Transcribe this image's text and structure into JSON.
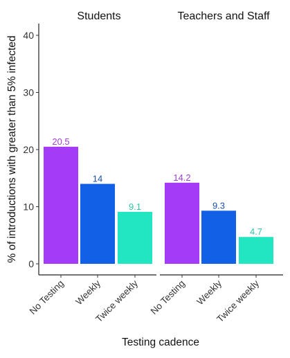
{
  "chart_data": {
    "type": "bar",
    "xlabel": "Testing cadence",
    "ylabel": "% of introductions with greater than 5% infected",
    "ylim": [
      0,
      42
    ],
    "yticks": [
      0,
      10,
      20,
      30,
      40
    ],
    "grid": false,
    "legend": "none",
    "categories": [
      "No Testing",
      "Weekly",
      "Twice weekly"
    ],
    "colors": [
      "#a43bf7",
      "#1160e6",
      "#22e5c2"
    ],
    "label_colors": [
      "#a33bd6",
      "#1a4fa8",
      "#2ec9ab"
    ],
    "panels": [
      {
        "title": "Students",
        "values": [
          20.5,
          14,
          9.1
        ],
        "labels": [
          "20.5",
          "14",
          "9.1"
        ]
      },
      {
        "title": "Teachers and Staff",
        "values": [
          14.2,
          9.3,
          4.7
        ],
        "labels": [
          "14.2",
          "9.3",
          "4.7"
        ]
      }
    ]
  }
}
